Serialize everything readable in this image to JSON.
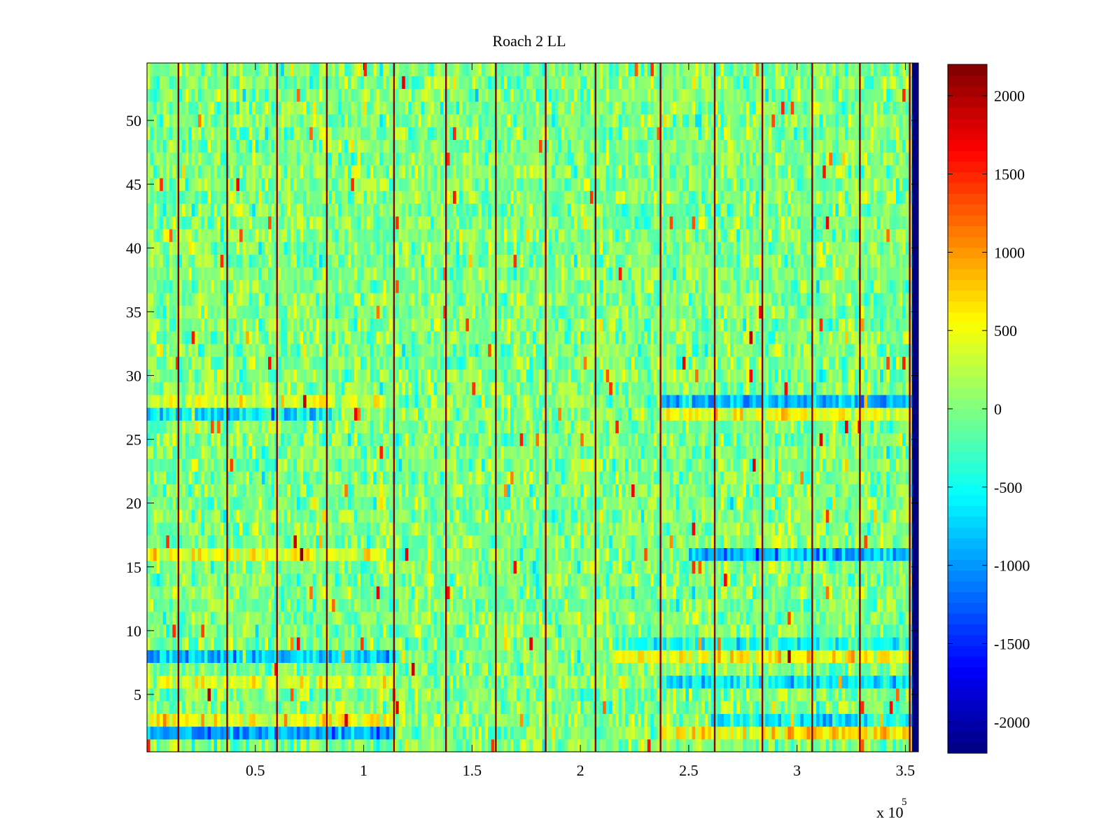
{
  "chart_data": {
    "type": "heatmap",
    "title": "Roach 2 LL",
    "xlabel": "",
    "ylabel": "",
    "x_range": [
      1,
      356000
    ],
    "y_range": [
      0.5,
      54.5
    ],
    "rows": 54,
    "x_exponent_label": "x 10",
    "x_exponent_power": "5",
    "x_ticks": [
      {
        "value": 50000,
        "label": "0.5"
      },
      {
        "value": 100000,
        "label": "1"
      },
      {
        "value": 150000,
        "label": "1.5"
      },
      {
        "value": 200000,
        "label": "2"
      },
      {
        "value": 250000,
        "label": "2.5"
      },
      {
        "value": 300000,
        "label": "3"
      },
      {
        "value": 350000,
        "label": "3.5"
      }
    ],
    "y_ticks": [
      {
        "value": 5,
        "label": "5"
      },
      {
        "value": 10,
        "label": "10"
      },
      {
        "value": 15,
        "label": "15"
      },
      {
        "value": 20,
        "label": "20"
      },
      {
        "value": 25,
        "label": "25"
      },
      {
        "value": 30,
        "label": "30"
      },
      {
        "value": 35,
        "label": "35"
      },
      {
        "value": 40,
        "label": "40"
      },
      {
        "value": 45,
        "label": "45"
      },
      {
        "value": 50,
        "label": "50"
      }
    ],
    "colorbar": {
      "clim": [
        -2200,
        2200
      ],
      "colormap": "jet",
      "ticks": [
        {
          "value": 2000,
          "label": "2000"
        },
        {
          "value": 1500,
          "label": "1500"
        },
        {
          "value": 1000,
          "label": "1000"
        },
        {
          "value": 500,
          "label": "500"
        },
        {
          "value": 0,
          "label": "0"
        },
        {
          "value": -500,
          "label": "-500"
        },
        {
          "value": -1000,
          "label": "-1000"
        },
        {
          "value": -1500,
          "label": "-1500"
        },
        {
          "value": -2000,
          "label": "-2000"
        }
      ]
    },
    "baseline_value": 0,
    "noise_amplitude": 260,
    "vertical_line_x": [
      14500,
      37000,
      60000,
      83000,
      114000,
      138000,
      161000,
      184000,
      207000,
      237000,
      262000,
      284000,
      307000,
      329000,
      352000
    ],
    "vertical_line_value": 2150,
    "blank_region": {
      "x_start": 353000,
      "value": -2200
    },
    "row_bands": [
      {
        "rows": [
          28
        ],
        "x_from": 0,
        "x_to": 110000,
        "value": 400
      },
      {
        "rows": [
          27
        ],
        "x_from": 0,
        "x_to": 85000,
        "value": -650
      },
      {
        "rows": [
          28
        ],
        "x_from": 237000,
        "x_to": 353000,
        "value": -800
      },
      {
        "rows": [
          27
        ],
        "x_from": 237000,
        "x_to": 353000,
        "value": 450
      },
      {
        "rows": [
          16
        ],
        "x_from": 0,
        "x_to": 110000,
        "value": 500
      },
      {
        "rows": [
          16
        ],
        "x_from": 250000,
        "x_to": 353000,
        "value": -900
      },
      {
        "rows": [
          8
        ],
        "x_from": 0,
        "x_to": 115000,
        "value": -800
      },
      {
        "rows": [
          8
        ],
        "x_from": 215000,
        "x_to": 353000,
        "value": 550
      },
      {
        "rows": [
          9
        ],
        "x_from": 215000,
        "x_to": 353000,
        "value": -500
      },
      {
        "rows": [
          6
        ],
        "x_from": 0,
        "x_to": 115000,
        "value": 350
      },
      {
        "rows": [
          6
        ],
        "x_from": 237000,
        "x_to": 353000,
        "value": -550
      },
      {
        "rows": [
          2
        ],
        "x_from": 0,
        "x_to": 115000,
        "value": -950
      },
      {
        "rows": [
          2
        ],
        "x_from": 237000,
        "x_to": 353000,
        "value": 650
      },
      {
        "rows": [
          3
        ],
        "x_from": 0,
        "x_to": 115000,
        "value": 450
      },
      {
        "rows": [
          3
        ],
        "x_from": 260000,
        "x_to": 353000,
        "value": -550
      }
    ]
  }
}
